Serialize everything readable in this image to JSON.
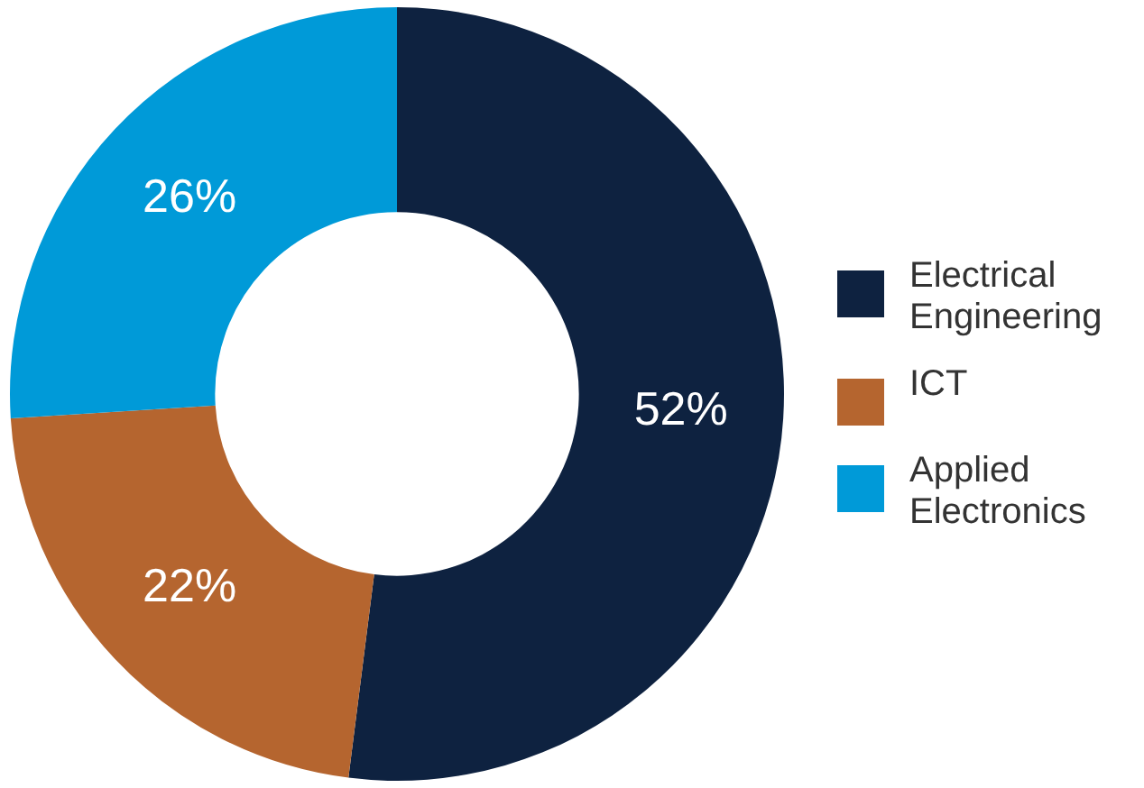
{
  "chart_data": {
    "type": "donut",
    "categories": [
      "Electrical Engineering",
      "ICT",
      "Applied Electronics"
    ],
    "values": [
      52,
      22,
      26
    ],
    "colors": [
      "#0e2240",
      "#b5652f",
      "#009ad8"
    ],
    "value_labels": [
      "52%",
      "22%",
      "26%"
    ],
    "legend": "right"
  }
}
